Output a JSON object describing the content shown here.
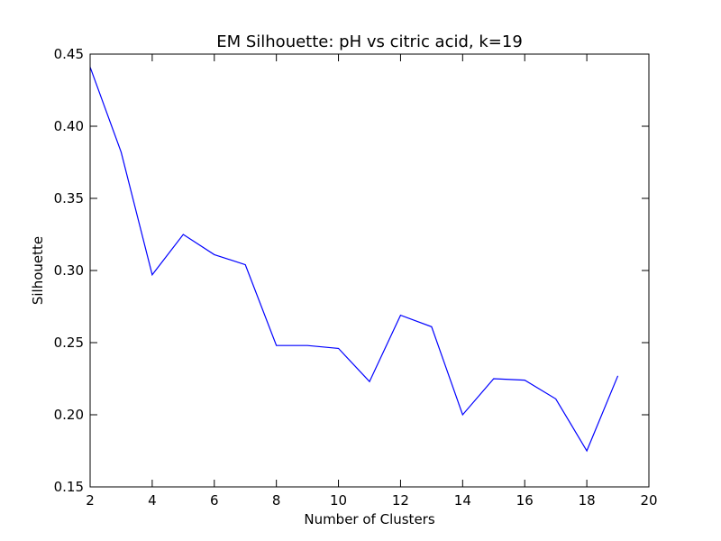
{
  "chart_data": {
    "type": "line",
    "title": "EM Silhouette: pH vs citric acid, k=19",
    "xlabel": "Number of Clusters",
    "ylabel": "Silhouette",
    "xlim": [
      2,
      20
    ],
    "ylim": [
      0.15,
      0.45
    ],
    "xticks": [
      2,
      4,
      6,
      8,
      10,
      12,
      14,
      16,
      18,
      20
    ],
    "yticks": [
      0.15,
      0.2,
      0.25,
      0.3,
      0.35,
      0.4,
      0.45
    ],
    "xtick_labels": [
      "2",
      "4",
      "6",
      "8",
      "10",
      "12",
      "14",
      "16",
      "18",
      "20"
    ],
    "ytick_labels": [
      "0.15",
      "0.20",
      "0.25",
      "0.30",
      "0.35",
      "0.40",
      "0.45"
    ],
    "grid": false,
    "series": [
      {
        "color": "#0000ff",
        "x": [
          2,
          3,
          4,
          5,
          6,
          7,
          8,
          9,
          10,
          11,
          12,
          13,
          14,
          15,
          16,
          17,
          18,
          19
        ],
        "y": [
          0.441,
          0.382,
          0.297,
          0.325,
          0.311,
          0.304,
          0.248,
          0.248,
          0.246,
          0.223,
          0.269,
          0.261,
          0.2,
          0.225,
          0.224,
          0.211,
          0.175,
          0.227
        ]
      }
    ]
  }
}
